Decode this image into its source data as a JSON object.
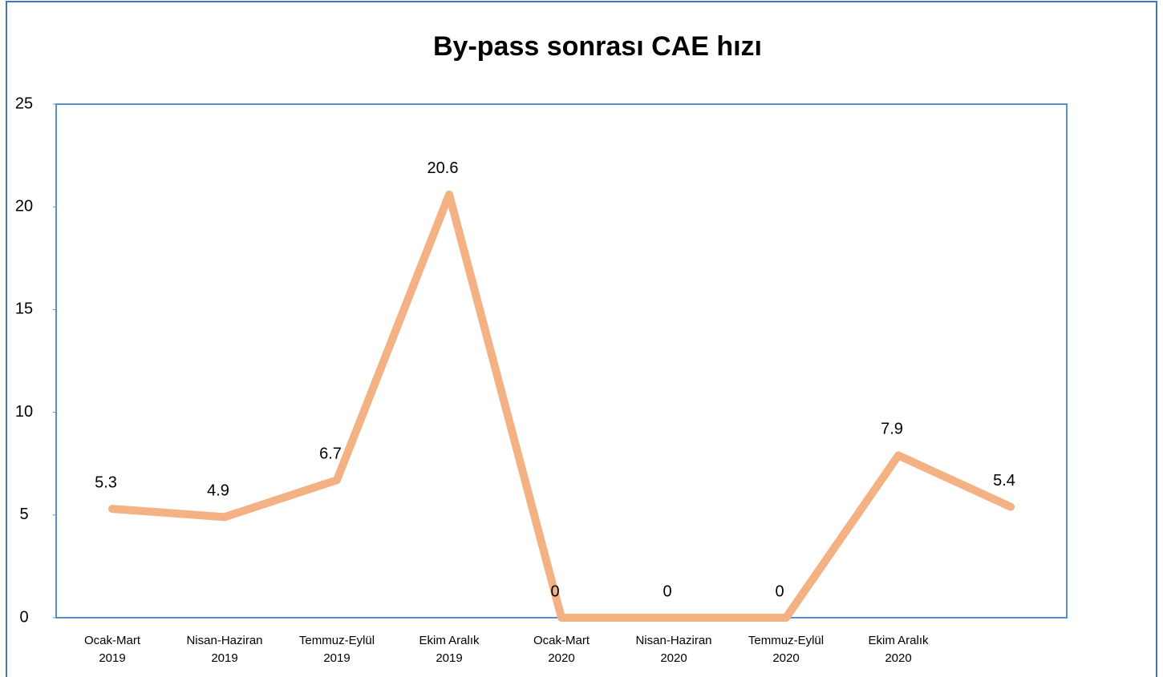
{
  "chart_data": {
    "type": "line",
    "title": "By-pass sonrası CAE hızı",
    "categories": [
      "Ocak-Mart\n2019",
      "Nisan-Haziran\n2019",
      "Temmuz-Eylül\n2019",
      "Ekim Aralık\n2019",
      "Ocak-Mart\n2020",
      "Nisan-Haziran\n2020",
      "Temmuz-Eylül\n2020",
      "Ekim Aralık\n2020",
      null
    ],
    "values": [
      5.3,
      4.9,
      6.7,
      20.6,
      0,
      0,
      0,
      7.9,
      5.4
    ],
    "color": "#f4b183",
    "ylim": [
      0,
      25
    ],
    "yticks": [
      0,
      5,
      10,
      15,
      20,
      25
    ],
    "grid": false
  }
}
